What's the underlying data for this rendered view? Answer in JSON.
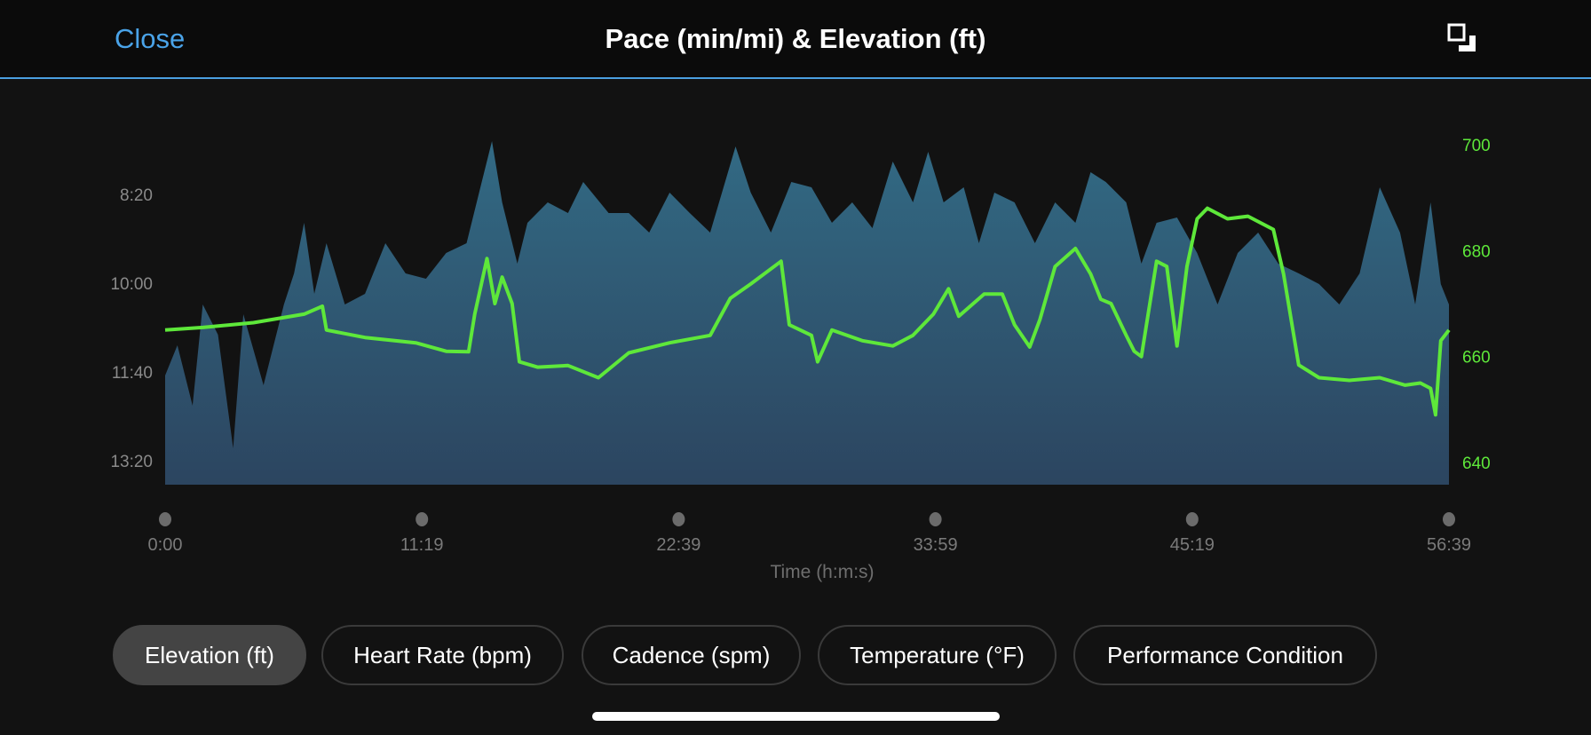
{
  "header": {
    "close_label": "Close",
    "title": "Pace (min/mi) & Elevation (ft)",
    "expand_icon": "expand-icon"
  },
  "colors": {
    "accent": "#4aa3e8",
    "elevation_line": "#5ee83a",
    "pace_fill": "#2e5a72"
  },
  "chart_data": {
    "type": "area",
    "title": "Pace (min/mi) & Elevation (ft)",
    "xlabel": "Time (h:m:s)",
    "x_ticks": [
      "0:00",
      "11:19",
      "22:39",
      "33:59",
      "45:19",
      "56:39"
    ],
    "x_range_min": [
      0,
      56.65
    ],
    "left_axis": {
      "label": "Pace (min/mi)",
      "ticks": [
        "8:20",
        "10:00",
        "11:40",
        "13:20"
      ],
      "tick_values_sec": [
        500,
        600,
        700,
        800
      ],
      "inverted": true
    },
    "right_axis": {
      "label": "Elevation (ft)",
      "ticks": [
        "700",
        "680",
        "660",
        "640"
      ],
      "tick_values": [
        700,
        680,
        660,
        640
      ]
    },
    "series": [
      {
        "name": "Pace",
        "kind": "area",
        "unit": "sec/mi",
        "x_min": [
          0,
          0.54,
          1.21,
          1.66,
          2.33,
          3.0,
          3.45,
          4.34,
          5.24,
          5.69,
          6.13,
          6.58,
          7.12,
          7.93,
          8.82,
          9.72,
          10.61,
          11.51,
          12.4,
          13.3,
          13.97,
          14.42,
          14.87,
          15.54,
          15.99,
          16.88,
          17.78,
          18.45,
          19.57,
          20.46,
          21.36,
          22.26,
          23.15,
          24.05,
          25.17,
          25.84,
          26.73,
          27.63,
          28.52,
          29.42,
          30.32,
          31.21,
          32.11,
          33.0,
          33.67,
          34.35,
          35.24,
          35.91,
          36.59,
          37.48,
          38.38,
          39.27,
          40.17,
          40.84,
          41.51,
          42.41,
          43.08,
          43.75,
          44.65,
          45.54,
          46.44,
          47.33,
          48.23,
          49.12,
          50.02,
          50.92,
          51.81,
          52.71,
          53.6,
          54.49,
          55.16,
          55.84,
          56.29,
          56.65
        ],
        "values": [
          704,
          670,
          738,
          624,
          658,
          786,
          635,
          715,
          624,
          589,
          532,
          612,
          555,
          624,
          612,
          555,
          589,
          595,
          566,
          555,
          486,
          440,
          509,
          578,
          532,
          509,
          521,
          486,
          521,
          521,
          543,
          498,
          521,
          543,
          446,
          498,
          543,
          486,
          492,
          532,
          509,
          538,
          463,
          509,
          452,
          509,
          492,
          555,
          498,
          509,
          555,
          509,
          532,
          475,
          486,
          509,
          578,
          532,
          526,
          566,
          624,
          566,
          543,
          578,
          589,
          601,
          624,
          589,
          492,
          543,
          624,
          509,
          601,
          624
        ]
      },
      {
        "name": "Elevation",
        "kind": "line",
        "unit": "ft",
        "x_min": [
          0,
          1.66,
          3.9,
          6.13,
          6.94,
          7.12,
          8.82,
          11.06,
          12.4,
          13.39,
          13.66,
          14.2,
          14.55,
          14.87,
          15.31,
          15.63,
          16.43,
          17.78,
          19.12,
          20.46,
          22.26,
          24.05,
          24.94,
          25.84,
          27.18,
          27.54,
          28.52,
          28.79,
          29.42,
          30.76,
          32.11,
          33.0,
          33.9,
          34.57,
          35.02,
          36.14,
          36.94,
          37.48,
          38.15,
          38.6,
          39.27,
          40.17,
          40.84,
          41.29,
          41.74,
          42.41,
          42.76,
          43.08,
          43.75,
          44.2,
          44.65,
          45.09,
          45.54,
          45.99,
          46.88,
          47.78,
          48.9,
          49.35,
          50.02,
          50.92,
          52.26,
          53.6,
          54.72,
          55.39,
          55.84,
          56.06,
          56.29,
          56.65
        ],
        "values": [
          665,
          665.5,
          666.4,
          668,
          669.5,
          665,
          663.6,
          662.6,
          661,
          660.9,
          668,
          678.5,
          670,
          675,
          670,
          659,
          658,
          658.3,
          656,
          660.7,
          662.6,
          664,
          671,
          673.7,
          678,
          666,
          664,
          659,
          665,
          663,
          662,
          664,
          668,
          672.8,
          667.6,
          671.8,
          671.8,
          666,
          661.8,
          667,
          677,
          680.4,
          675.6,
          670.8,
          670,
          664,
          661,
          660,
          678,
          677,
          662,
          677,
          686,
          688,
          686,
          686.5,
          684,
          675.6,
          658.4,
          656,
          655.5,
          656,
          654.6,
          655,
          654,
          649,
          663,
          665
        ]
      }
    ]
  },
  "tabs": [
    {
      "label": "Elevation (ft)",
      "active": true
    },
    {
      "label": "Heart Rate (bpm)",
      "active": false
    },
    {
      "label": "Cadence (spm)",
      "active": false
    },
    {
      "label": "Temperature (°F)",
      "active": false
    },
    {
      "label": "Performance Condition",
      "active": false
    }
  ]
}
